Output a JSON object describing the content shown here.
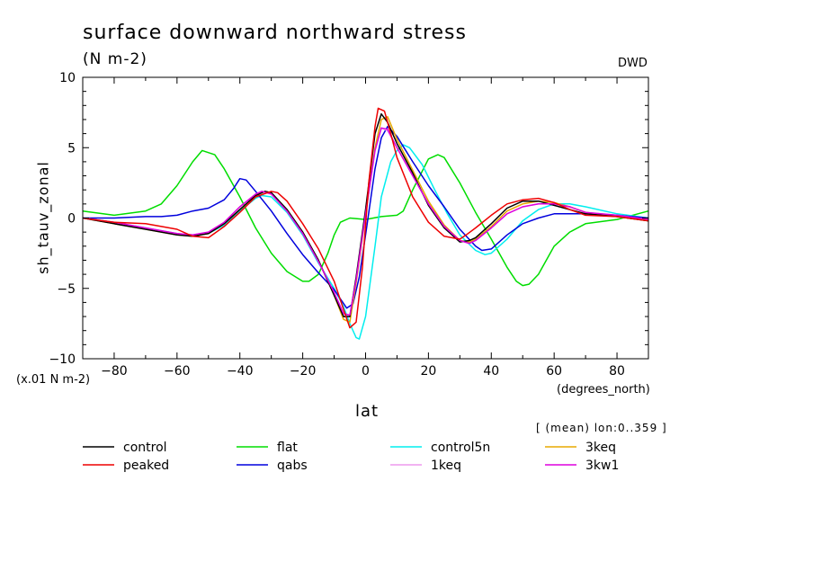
{
  "chart_data": {
    "type": "line",
    "title": "surface downward northward stress",
    "units": "(N m-2)",
    "source": "DWD",
    "ylabel": "sh_tauv_zonal",
    "yscale_note": "(x.01 N m-2)",
    "xlabel": "lat",
    "xunits": "(degrees_north)",
    "subnote": "[ (mean) lon:0..359 ]",
    "xlim": [
      -90,
      90
    ],
    "ylim": [
      -10,
      10
    ],
    "xticks": [
      -80,
      -60,
      -40,
      -20,
      0,
      20,
      40,
      60,
      80
    ],
    "xtick_labels": [
      "−80",
      "−60",
      "−40",
      "−20",
      "0",
      "20",
      "40",
      "60",
      "80"
    ],
    "yticks": [
      -10,
      -5,
      0,
      5,
      10
    ],
    "ytick_labels": [
      "−10",
      "−5",
      "0",
      "5",
      "10"
    ],
    "grid": false,
    "legend_position": "bottom",
    "series": [
      {
        "name": "control",
        "color": "#000000",
        "x": [
          -90,
          -80,
          -70,
          -60,
          -55,
          -50,
          -45,
          -40,
          -35,
          -32,
          -30,
          -25,
          -20,
          -15,
          -10,
          -7,
          -5,
          -3,
          0,
          3,
          5,
          7,
          10,
          15,
          20,
          25,
          30,
          33,
          35,
          40,
          45,
          50,
          55,
          60,
          65,
          70,
          80,
          90
        ],
        "y": [
          0,
          -0.4,
          -0.8,
          -1.2,
          -1.3,
          -1.1,
          -0.4,
          0.6,
          1.6,
          1.9,
          1.8,
          0.6,
          -1,
          -3,
          -5.5,
          -7,
          -7,
          -4.2,
          0.6,
          6,
          7.4,
          6.8,
          5.3,
          3.2,
          0.9,
          -0.7,
          -1.7,
          -1.6,
          -1.4,
          -0.4,
          0.7,
          1.2,
          1.2,
          0.9,
          0.6,
          0.3,
          0.1,
          -0.2
        ]
      },
      {
        "name": "flat",
        "color": "#00dd00",
        "x": [
          -90,
          -80,
          -70,
          -65,
          -60,
          -55,
          -52,
          -48,
          -45,
          -40,
          -35,
          -30,
          -25,
          -20,
          -18,
          -15,
          -12,
          -10,
          -8,
          -5,
          0,
          5,
          10,
          12,
          15,
          20,
          23,
          25,
          30,
          35,
          40,
          45,
          48,
          50,
          52,
          55,
          60,
          65,
          70,
          80,
          90
        ],
        "y": [
          0.5,
          0.2,
          0.5,
          1,
          2.3,
          4,
          4.8,
          4.5,
          3.5,
          1.5,
          -0.7,
          -2.5,
          -3.8,
          -4.5,
          -4.5,
          -4,
          -2.5,
          -1.2,
          -0.3,
          0,
          -0.1,
          0.1,
          0.2,
          0.5,
          2,
          4.2,
          4.5,
          4.3,
          2.5,
          0.4,
          -1.5,
          -3.5,
          -4.5,
          -4.8,
          -4.7,
          -4,
          -2,
          -1,
          -0.4,
          -0.1,
          0.5
        ]
      },
      {
        "name": "control5n",
        "color": "#00eeee",
        "x": [
          -90,
          -80,
          -70,
          -60,
          -55,
          -50,
          -45,
          -40,
          -35,
          -33,
          -30,
          -25,
          -20,
          -15,
          -10,
          -7,
          -5,
          -3,
          -2,
          0,
          3,
          5,
          8,
          10,
          12,
          14,
          18,
          22,
          26,
          30,
          35,
          38,
          40,
          45,
          50,
          55,
          60,
          65,
          70,
          80,
          90
        ],
        "y": [
          0,
          -0.3,
          -0.7,
          -1.1,
          -1.2,
          -1.1,
          -0.5,
          0.5,
          1.4,
          1.6,
          1.5,
          0.4,
          -1.2,
          -3.2,
          -5,
          -6.3,
          -7.5,
          -8.5,
          -8.6,
          -7,
          -2,
          1.5,
          4,
          4.8,
          5.2,
          5,
          3.8,
          2,
          0.3,
          -1.2,
          -2.3,
          -2.6,
          -2.5,
          -1.5,
          -0.2,
          0.6,
          1,
          1,
          0.8,
          0.3,
          0
        ]
      },
      {
        "name": "3keq",
        "color": "#e8a800",
        "x": [
          -90,
          -80,
          -70,
          -60,
          -55,
          -50,
          -45,
          -40,
          -35,
          -32,
          -30,
          -25,
          -20,
          -15,
          -10,
          -7,
          -5,
          -3,
          0,
          3,
          5,
          7,
          10,
          15,
          20,
          25,
          30,
          33,
          35,
          40,
          45,
          50,
          55,
          60,
          65,
          70,
          80,
          90
        ],
        "y": [
          0,
          -0.4,
          -0.8,
          -1.2,
          -1.3,
          -1.1,
          -0.4,
          0.6,
          1.6,
          1.9,
          1.8,
          0.6,
          -1,
          -3,
          -5.5,
          -7.2,
          -7.4,
          -4.6,
          0.2,
          5,
          7,
          7.2,
          5.6,
          3.4,
          1.2,
          -0.5,
          -1.6,
          -1.7,
          -1.5,
          -0.6,
          0.5,
          1,
          1.2,
          1.1,
          0.8,
          0.4,
          0.1,
          -0.2
        ]
      },
      {
        "name": "peaked",
        "color": "#ee0000",
        "x": [
          -90,
          -80,
          -70,
          -65,
          -60,
          -55,
          -50,
          -45,
          -40,
          -35,
          -30,
          -28,
          -25,
          -20,
          -15,
          -10,
          -7,
          -5,
          -3,
          -1,
          1,
          3,
          4,
          6,
          8,
          10,
          15,
          20,
          25,
          30,
          32,
          35,
          40,
          45,
          50,
          55,
          60,
          65,
          70,
          80,
          90
        ],
        "y": [
          0,
          -0.3,
          -0.4,
          -0.6,
          -0.8,
          -1.3,
          -1.4,
          -0.6,
          0.4,
          1.5,
          1.9,
          1.8,
          1.2,
          -0.4,
          -2.2,
          -4.5,
          -6.5,
          -7.8,
          -7.4,
          -3.5,
          2.5,
          6.5,
          7.8,
          7.6,
          6,
          4.3,
          1.5,
          -0.3,
          -1.3,
          -1.5,
          -1.2,
          -0.7,
          0.2,
          1,
          1.3,
          1.4,
          1.1,
          0.6,
          0.2,
          0.1,
          -0.2
        ]
      },
      {
        "name": "qabs",
        "color": "#0000dd",
        "x": [
          -90,
          -80,
          -70,
          -65,
          -60,
          -55,
          -50,
          -45,
          -42,
          -40,
          -38,
          -35,
          -30,
          -25,
          -20,
          -15,
          -10,
          -6,
          -4,
          -2,
          0,
          3,
          5,
          7,
          10,
          15,
          20,
          25,
          30,
          35,
          37,
          40,
          45,
          50,
          55,
          60,
          65,
          70,
          80,
          90
        ],
        "y": [
          0,
          0,
          0.1,
          0.1,
          0.2,
          0.5,
          0.7,
          1.3,
          2.1,
          2.8,
          2.7,
          1.9,
          0.5,
          -1.1,
          -2.6,
          -3.9,
          -5.1,
          -6.4,
          -6.1,
          -4.2,
          -1.2,
          3.5,
          5.7,
          6.5,
          5.8,
          4,
          2.3,
          0.8,
          -0.8,
          -2,
          -2.3,
          -2.2,
          -1.2,
          -0.4,
          0,
          0.3,
          0.3,
          0.3,
          0.2,
          0
        ]
      },
      {
        "name": "1keq",
        "color": "#ee99ee",
        "x": [
          -90,
          -80,
          -70,
          -60,
          -55,
          -50,
          -45,
          -40,
          -35,
          -33,
          -30,
          -25,
          -20,
          -15,
          -10,
          -7,
          -5,
          -3,
          0,
          3,
          5,
          7,
          10,
          15,
          20,
          25,
          30,
          33,
          35,
          40,
          45,
          50,
          55,
          60,
          65,
          70,
          80,
          90
        ],
        "y": [
          0,
          -0.3,
          -0.7,
          -1.1,
          -1.2,
          -1,
          -0.3,
          0.8,
          1.7,
          1.9,
          1.7,
          0.5,
          -1.1,
          -3.1,
          -5.4,
          -7,
          -7,
          -4.5,
          0.2,
          4.8,
          6.4,
          6.2,
          5,
          3,
          1,
          -0.6,
          -1.6,
          -1.8,
          -1.6,
          -0.7,
          0.3,
          0.8,
          1,
          1,
          0.8,
          0.4,
          0.2,
          -0.1
        ]
      },
      {
        "name": "3kw1",
        "color": "#dd00dd",
        "x": [
          -90,
          -80,
          -70,
          -60,
          -55,
          -50,
          -45,
          -40,
          -35,
          -33,
          -30,
          -25,
          -20,
          -15,
          -10,
          -7,
          -5,
          -3,
          0,
          3,
          5,
          7,
          10,
          15,
          20,
          25,
          30,
          33,
          35,
          40,
          45,
          50,
          55,
          60,
          65,
          70,
          80,
          90
        ],
        "y": [
          0,
          -0.3,
          -0.7,
          -1.1,
          -1.2,
          -1,
          -0.3,
          0.8,
          1.7,
          1.9,
          1.7,
          0.5,
          -1.1,
          -3.1,
          -5.3,
          -6.8,
          -6.9,
          -4.4,
          0.3,
          4.8,
          6.4,
          6.3,
          5,
          3,
          1,
          -0.6,
          -1.6,
          -1.8,
          -1.6,
          -0.7,
          0.3,
          0.8,
          1,
          1,
          0.8,
          0.4,
          0.2,
          -0.1
        ]
      }
    ],
    "legend": [
      {
        "name": "control",
        "color": "#000000"
      },
      {
        "name": "flat",
        "color": "#00dd00"
      },
      {
        "name": "control5n",
        "color": "#00eeee"
      },
      {
        "name": "3keq",
        "color": "#e8a800"
      },
      {
        "name": "peaked",
        "color": "#ee0000"
      },
      {
        "name": "qabs",
        "color": "#0000dd"
      },
      {
        "name": "1keq",
        "color": "#ee99ee"
      },
      {
        "name": "3kw1",
        "color": "#dd00dd"
      }
    ]
  }
}
